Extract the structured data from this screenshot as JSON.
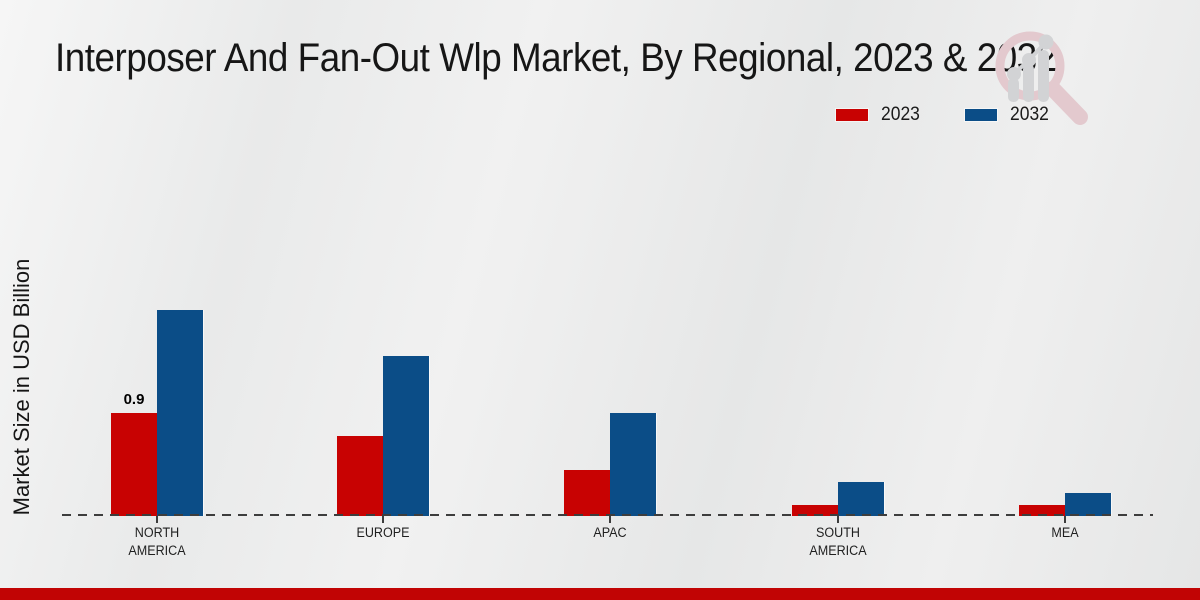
{
  "chart_data": {
    "type": "bar",
    "title": "Interposer And Fan-Out Wlp Market, By Regional, 2023 & 2032",
    "ylabel": "Market Size in USD Billion",
    "xlabel": "",
    "categories": [
      "NORTH AMERICA",
      "EUROPE",
      "APAC",
      "SOUTH AMERICA",
      "MEA"
    ],
    "category_label_lines": [
      [
        "NORTH",
        "AMERICA"
      ],
      [
        "EUROPE"
      ],
      [
        "APAC"
      ],
      [
        "SOUTH",
        "AMERICA"
      ],
      [
        "MEA"
      ]
    ],
    "series": [
      {
        "name": "2023",
        "color": "#c80202",
        "values": [
          0.9,
          0.7,
          0.4,
          0.1,
          0.1
        ]
      },
      {
        "name": "2032",
        "color": "#0b4d87",
        "values": [
          1.8,
          1.4,
          0.9,
          0.3,
          0.2
        ]
      }
    ],
    "value_labels": [
      {
        "category_index": 0,
        "series_index": 0,
        "text": "0.9"
      }
    ],
    "legend_position": "top-right",
    "baseline_style": "dashed",
    "grid": false,
    "ylim": [
      0,
      2.0
    ]
  },
  "branding": {
    "accent_bar_color": "#c10404",
    "logo_name": "magnifier-bar-chart-watermark",
    "logo_ring_color": "#e3c9ce",
    "logo_bars_color": "#d2d3d5"
  }
}
